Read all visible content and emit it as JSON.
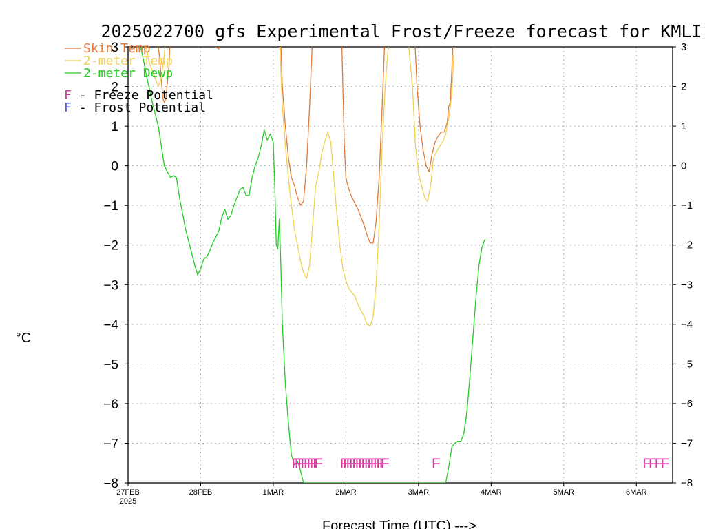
{
  "colors": {
    "skin": "#e07b39",
    "temp2m": "#f0d050",
    "dewp2m": "#22cc22",
    "freeze": "#d63a9e",
    "frost": "#5a5ae0",
    "grid": "#b4b4b4"
  },
  "chart_data": {
    "type": "line",
    "title": "2025022700 gfs Experimental Frost/Freeze forecast for KMLI",
    "xlabel": "Forecast Time (UTC) --->",
    "ylabel": "°C",
    "ylim": [
      -8,
      3
    ],
    "xlim_hours": [
      0,
      180
    ],
    "grid": true,
    "y_ticks": [
      -8,
      -7,
      -6,
      -5,
      -4,
      -3,
      -2,
      -1,
      0,
      1,
      2,
      3
    ],
    "y_tick_labels": [
      "−8",
      "−7",
      "−6",
      "−5",
      "−4",
      "−3",
      "−2",
      "−1",
      "0",
      "1",
      "2",
      "3"
    ],
    "x_ticks": [
      {
        "hour": 0,
        "label": "27FEB",
        "sub": "2025"
      },
      {
        "hour": 24,
        "label": "28FEB",
        "sub": ""
      },
      {
        "hour": 48,
        "label": "1MAR",
        "sub": ""
      },
      {
        "hour": 72,
        "label": "2MAR",
        "sub": ""
      },
      {
        "hour": 96,
        "label": "3MAR",
        "sub": ""
      },
      {
        "hour": 120,
        "label": "4MAR",
        "sub": ""
      },
      {
        "hour": 144,
        "label": "5MAR",
        "sub": ""
      },
      {
        "hour": 168,
        "label": "6MAR",
        "sub": ""
      }
    ],
    "legend": {
      "placement": "top-left",
      "series": [
        {
          "name": "Skin Temp",
          "color_key": "skin"
        },
        {
          "name": "2-meter Temp",
          "color_key": "temp2m"
        },
        {
          "name": "2-meter Dewp",
          "color_key": "dewp2m"
        }
      ],
      "flags": [
        {
          "letter": "F",
          "text": " - Freeze Potential",
          "color_key": "freeze"
        },
        {
          "letter": "F",
          "text": " - Frost Potential",
          "color_key": "frost"
        }
      ]
    },
    "series": [
      {
        "name": "Skin Temp",
        "color_key": "skin",
        "points": [
          [
            9.5,
            3.3
          ],
          [
            10.5,
            2.7
          ],
          [
            11.5,
            1.7
          ],
          [
            12,
            1.6
          ],
          [
            12.5,
            1.7
          ],
          [
            13.5,
            2.5
          ],
          [
            14,
            3.3
          ],
          [
            27,
            3.3
          ],
          [
            29,
            3.0
          ],
          [
            30,
            2.95
          ],
          [
            31,
            3.3
          ],
          [
            50.4,
            3.3
          ],
          [
            51,
            2.0
          ],
          [
            52,
            1.0
          ],
          [
            53,
            0.2
          ],
          [
            54,
            -0.3
          ],
          [
            55,
            -0.5
          ],
          [
            56,
            -0.8
          ],
          [
            57,
            -1.0
          ],
          [
            58,
            -0.9
          ],
          [
            59,
            0.0
          ],
          [
            60,
            1.5
          ],
          [
            61,
            3.3
          ],
          [
            70.6,
            3.3
          ],
          [
            71,
            2.0
          ],
          [
            71.5,
            0.5
          ],
          [
            72,
            -0.3
          ],
          [
            73,
            -0.6
          ],
          [
            74,
            -0.8
          ],
          [
            75,
            -0.95
          ],
          [
            76,
            -1.1
          ],
          [
            77,
            -1.3
          ],
          [
            78,
            -1.5
          ],
          [
            79,
            -1.75
          ],
          [
            80,
            -1.95
          ],
          [
            81,
            -1.95
          ],
          [
            82,
            -1.4
          ],
          [
            83,
            -0.3
          ],
          [
            84,
            1.5
          ],
          [
            84.9,
            3.3
          ],
          [
            94.7,
            3.3
          ],
          [
            95.5,
            2.0
          ],
          [
            96.5,
            1.0
          ],
          [
            97.5,
            0.4
          ],
          [
            98.5,
            0.0
          ],
          [
            99.5,
            -0.15
          ],
          [
            100.5,
            0.3
          ],
          [
            101.5,
            0.6
          ],
          [
            102.5,
            0.75
          ],
          [
            103.5,
            0.85
          ],
          [
            104.5,
            0.85
          ],
          [
            105.5,
            1.1
          ],
          [
            106,
            1.5
          ],
          [
            106.5,
            1.6
          ],
          [
            107,
            2.4
          ],
          [
            107.5,
            3.3
          ]
        ]
      },
      {
        "name": "2-meter Temp",
        "color_key": "temp2m",
        "points": [
          [
            5,
            3.3
          ],
          [
            6,
            3.0
          ],
          [
            7,
            2.6
          ],
          [
            8,
            2.4
          ],
          [
            9,
            2.2
          ],
          [
            10,
            2.0
          ],
          [
            11,
            2.2
          ],
          [
            12,
            2.8
          ],
          [
            12.5,
            3.3
          ],
          [
            50,
            3.3
          ],
          [
            51,
            1.5
          ],
          [
            52,
            0.5
          ],
          [
            53,
            -0.3
          ],
          [
            54,
            -1.0
          ],
          [
            55,
            -1.6
          ],
          [
            56,
            -2.0
          ],
          [
            57,
            -2.4
          ],
          [
            58,
            -2.7
          ],
          [
            59,
            -2.85
          ],
          [
            60,
            -2.5
          ],
          [
            61,
            -1.5
          ],
          [
            62,
            -0.5
          ],
          [
            63,
            -0.2
          ],
          [
            64,
            0.3
          ],
          [
            65,
            0.6
          ],
          [
            66,
            0.85
          ],
          [
            67,
            0.6
          ],
          [
            68,
            -0.3
          ],
          [
            69,
            -1.2
          ],
          [
            70,
            -2.0
          ],
          [
            71,
            -2.6
          ],
          [
            72,
            -2.9
          ],
          [
            73,
            -3.1
          ],
          [
            74,
            -3.2
          ],
          [
            75,
            -3.3
          ],
          [
            76,
            -3.5
          ],
          [
            77,
            -3.65
          ],
          [
            78,
            -3.8
          ],
          [
            79,
            -4.0
          ],
          [
            80,
            -4.05
          ],
          [
            81,
            -3.8
          ],
          [
            82,
            -3.0
          ],
          [
            83,
            -1.5
          ],
          [
            84,
            0.5
          ],
          [
            85,
            2.0
          ],
          [
            86,
            3.0
          ],
          [
            86.3,
            3.3
          ],
          [
            92.5,
            3.3
          ],
          [
            93,
            2.8
          ],
          [
            94,
            2.0
          ],
          [
            95,
            0.5
          ],
          [
            96,
            -0.2
          ],
          [
            97,
            -0.5
          ],
          [
            98,
            -0.8
          ],
          [
            99,
            -0.9
          ],
          [
            100,
            -0.5
          ],
          [
            101,
            0.2
          ],
          [
            102,
            0.35
          ],
          [
            103,
            0.5
          ],
          [
            104,
            0.6
          ],
          [
            105,
            0.8
          ],
          [
            106,
            1.2
          ],
          [
            107,
            1.8
          ],
          [
            108,
            3.3
          ]
        ]
      },
      {
        "name": "2-meter Dewp",
        "color_key": "dewp2m",
        "points": [
          [
            3,
            3.0
          ],
          [
            4,
            3.05
          ],
          [
            5,
            2.7
          ],
          [
            6,
            2.3
          ],
          [
            8,
            1.6
          ],
          [
            10,
            1.0
          ],
          [
            11,
            0.5
          ],
          [
            12,
            0.0
          ],
          [
            13,
            -0.15
          ],
          [
            14,
            -0.3
          ],
          [
            15,
            -0.25
          ],
          [
            16,
            -0.3
          ],
          [
            17,
            -0.8
          ],
          [
            18,
            -1.2
          ],
          [
            19,
            -1.6
          ],
          [
            20,
            -1.9
          ],
          [
            21,
            -2.2
          ],
          [
            22,
            -2.5
          ],
          [
            23,
            -2.75
          ],
          [
            24,
            -2.6
          ],
          [
            25,
            -2.35
          ],
          [
            26,
            -2.3
          ],
          [
            27,
            -2.15
          ],
          [
            28,
            -1.95
          ],
          [
            29,
            -1.8
          ],
          [
            30,
            -1.65
          ],
          [
            31,
            -1.3
          ],
          [
            32,
            -1.1
          ],
          [
            33,
            -1.35
          ],
          [
            34,
            -1.25
          ],
          [
            35,
            -1.0
          ],
          [
            36,
            -0.8
          ],
          [
            37,
            -0.6
          ],
          [
            38,
            -0.55
          ],
          [
            39,
            -0.75
          ],
          [
            40,
            -0.75
          ],
          [
            41,
            -0.3
          ],
          [
            42,
            0.0
          ],
          [
            43,
            0.2
          ],
          [
            44,
            0.5
          ],
          [
            45,
            0.9
          ],
          [
            46,
            0.65
          ],
          [
            47,
            0.8
          ],
          [
            48,
            0.6
          ],
          [
            48.5,
            -0.5
          ],
          [
            49,
            -2.0
          ],
          [
            49.5,
            -2.1
          ],
          [
            50,
            -1.35
          ],
          [
            50.5,
            -2.5
          ],
          [
            51,
            -4.0
          ],
          [
            52,
            -5.5
          ],
          [
            53,
            -6.5
          ],
          [
            54,
            -7.3
          ],
          [
            55,
            -7.55
          ],
          [
            56,
            -7.45
          ],
          [
            57,
            -7.7
          ],
          [
            58,
            -8.0
          ],
          [
            105,
            -8.0
          ],
          [
            106,
            -7.6
          ],
          [
            107,
            -7.1
          ],
          [
            108,
            -7.0
          ],
          [
            109,
            -6.95
          ],
          [
            110,
            -6.95
          ],
          [
            111,
            -6.75
          ],
          [
            112,
            -6.2
          ],
          [
            113,
            -5.3
          ],
          [
            114,
            -4.3
          ],
          [
            115,
            -3.3
          ],
          [
            116,
            -2.5
          ],
          [
            117,
            -2.05
          ],
          [
            118,
            -1.85
          ]
        ]
      }
    ],
    "flag_marks": [
      {
        "letter": "F",
        "color_key": "freeze",
        "hours": [
          55.5,
          56.5,
          57.5,
          58.5,
          59.5,
          60.5,
          61.5,
          62.5,
          63
        ]
      },
      {
        "letter": "F",
        "color_key": "freeze",
        "hours": [
          71.5,
          72.5,
          73.5,
          74.5,
          75.5,
          76.5,
          77.5,
          78.5,
          79.5,
          80.5,
          81.5,
          82.5,
          83.5,
          84.5,
          85
        ]
      },
      {
        "letter": "F",
        "color_key": "freeze",
        "hours": [
          101.8
        ]
      },
      {
        "letter": "F",
        "color_key": "freeze",
        "hours": [
          171.5,
          173.5,
          175.5,
          177.5
        ]
      }
    ],
    "flag_level": -7.5
  }
}
